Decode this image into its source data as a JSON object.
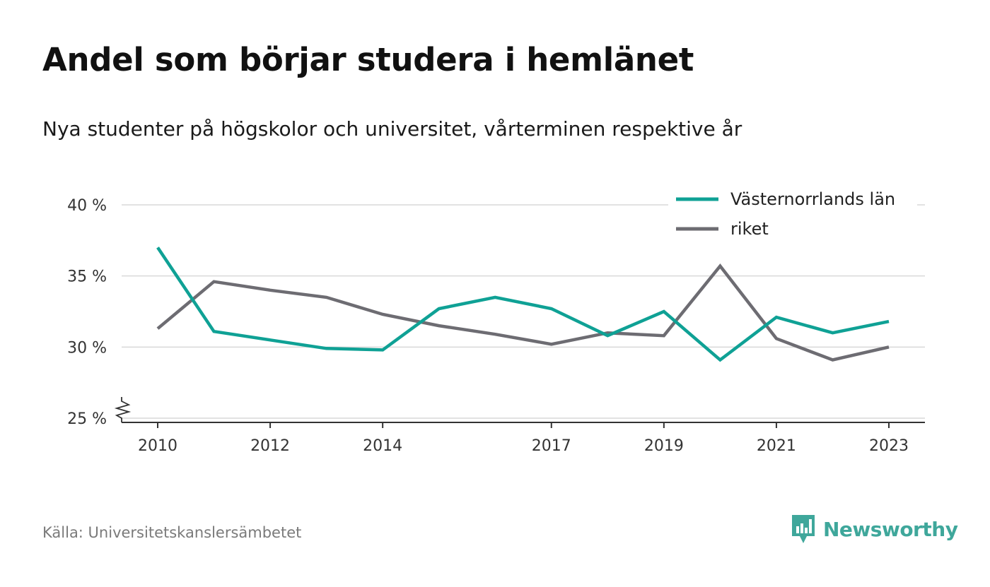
{
  "title": "Andel som börjar studera i hemlänet",
  "subtitle": "Nya studenter på högskolor och universitet, vårterminen respektive år",
  "source": "Källa: Universitetskanslersämbetet",
  "brand": {
    "name": "Newsworthy",
    "icon": "newsworthy-logo-icon",
    "color": "#3fa79b"
  },
  "chart_data": {
    "type": "line",
    "title": "Andel som börjar studera i hemlänet",
    "subtitle": "Nya studenter på högskolor och universitet, vårterminen respektive år",
    "xlabel": "",
    "ylabel": "",
    "x": [
      2010,
      2011,
      2012,
      2013,
      2014,
      2015,
      2016,
      2017,
      2018,
      2019,
      2020,
      2021,
      2022,
      2023
    ],
    "x_ticks": [
      "2010",
      "2012",
      "2014",
      "2017",
      "2019",
      "2021",
      "2023"
    ],
    "y_ticks": [
      "25 %",
      "30 %",
      "35 %",
      "40 %"
    ],
    "ylim": [
      25,
      40
    ],
    "y_axis_break": true,
    "grid": true,
    "legend_position": "top-right",
    "series": [
      {
        "name": "Västernorrlands län",
        "color": "#0fa195",
        "values": [
          37.0,
          31.1,
          30.5,
          29.9,
          29.8,
          32.7,
          33.5,
          32.7,
          30.8,
          32.5,
          29.1,
          32.1,
          31.0,
          31.8
        ]
      },
      {
        "name": "riket",
        "color": "#6d6c72",
        "values": [
          31.3,
          34.6,
          34.0,
          33.5,
          32.3,
          31.5,
          30.9,
          30.2,
          31.0,
          30.8,
          35.7,
          30.6,
          29.1,
          30.0
        ]
      }
    ]
  }
}
